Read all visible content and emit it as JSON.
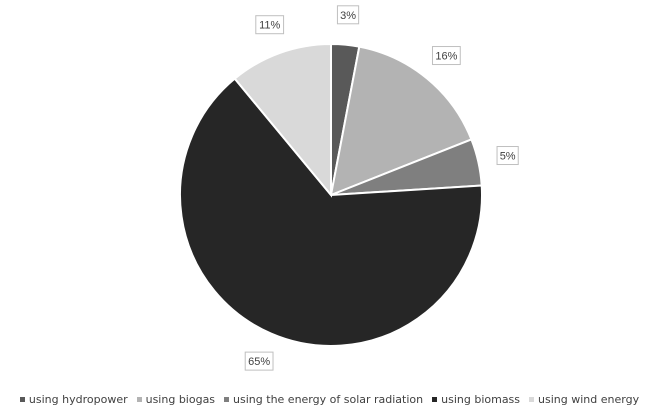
{
  "chart_data": {
    "type": "pie",
    "title": "",
    "slices": [
      {
        "label": "using hydropower",
        "value": 3,
        "display": "3%",
        "color": "#595959"
      },
      {
        "label": "using biogas",
        "value": 16,
        "display": "16%",
        "color": "#b3b3b3"
      },
      {
        "label": "using the energy of solar radiation",
        "value": 5,
        "display": "5%",
        "color": "#7f7f7f"
      },
      {
        "label": "using biomass",
        "value": 65,
        "display": "65%",
        "color": "#262626"
      },
      {
        "label": "using wind energy",
        "value": 11,
        "display": "11%",
        "color": "#d9d9d9"
      }
    ],
    "legend_position": "bottom",
    "slice_border_color": "#ffffff"
  }
}
